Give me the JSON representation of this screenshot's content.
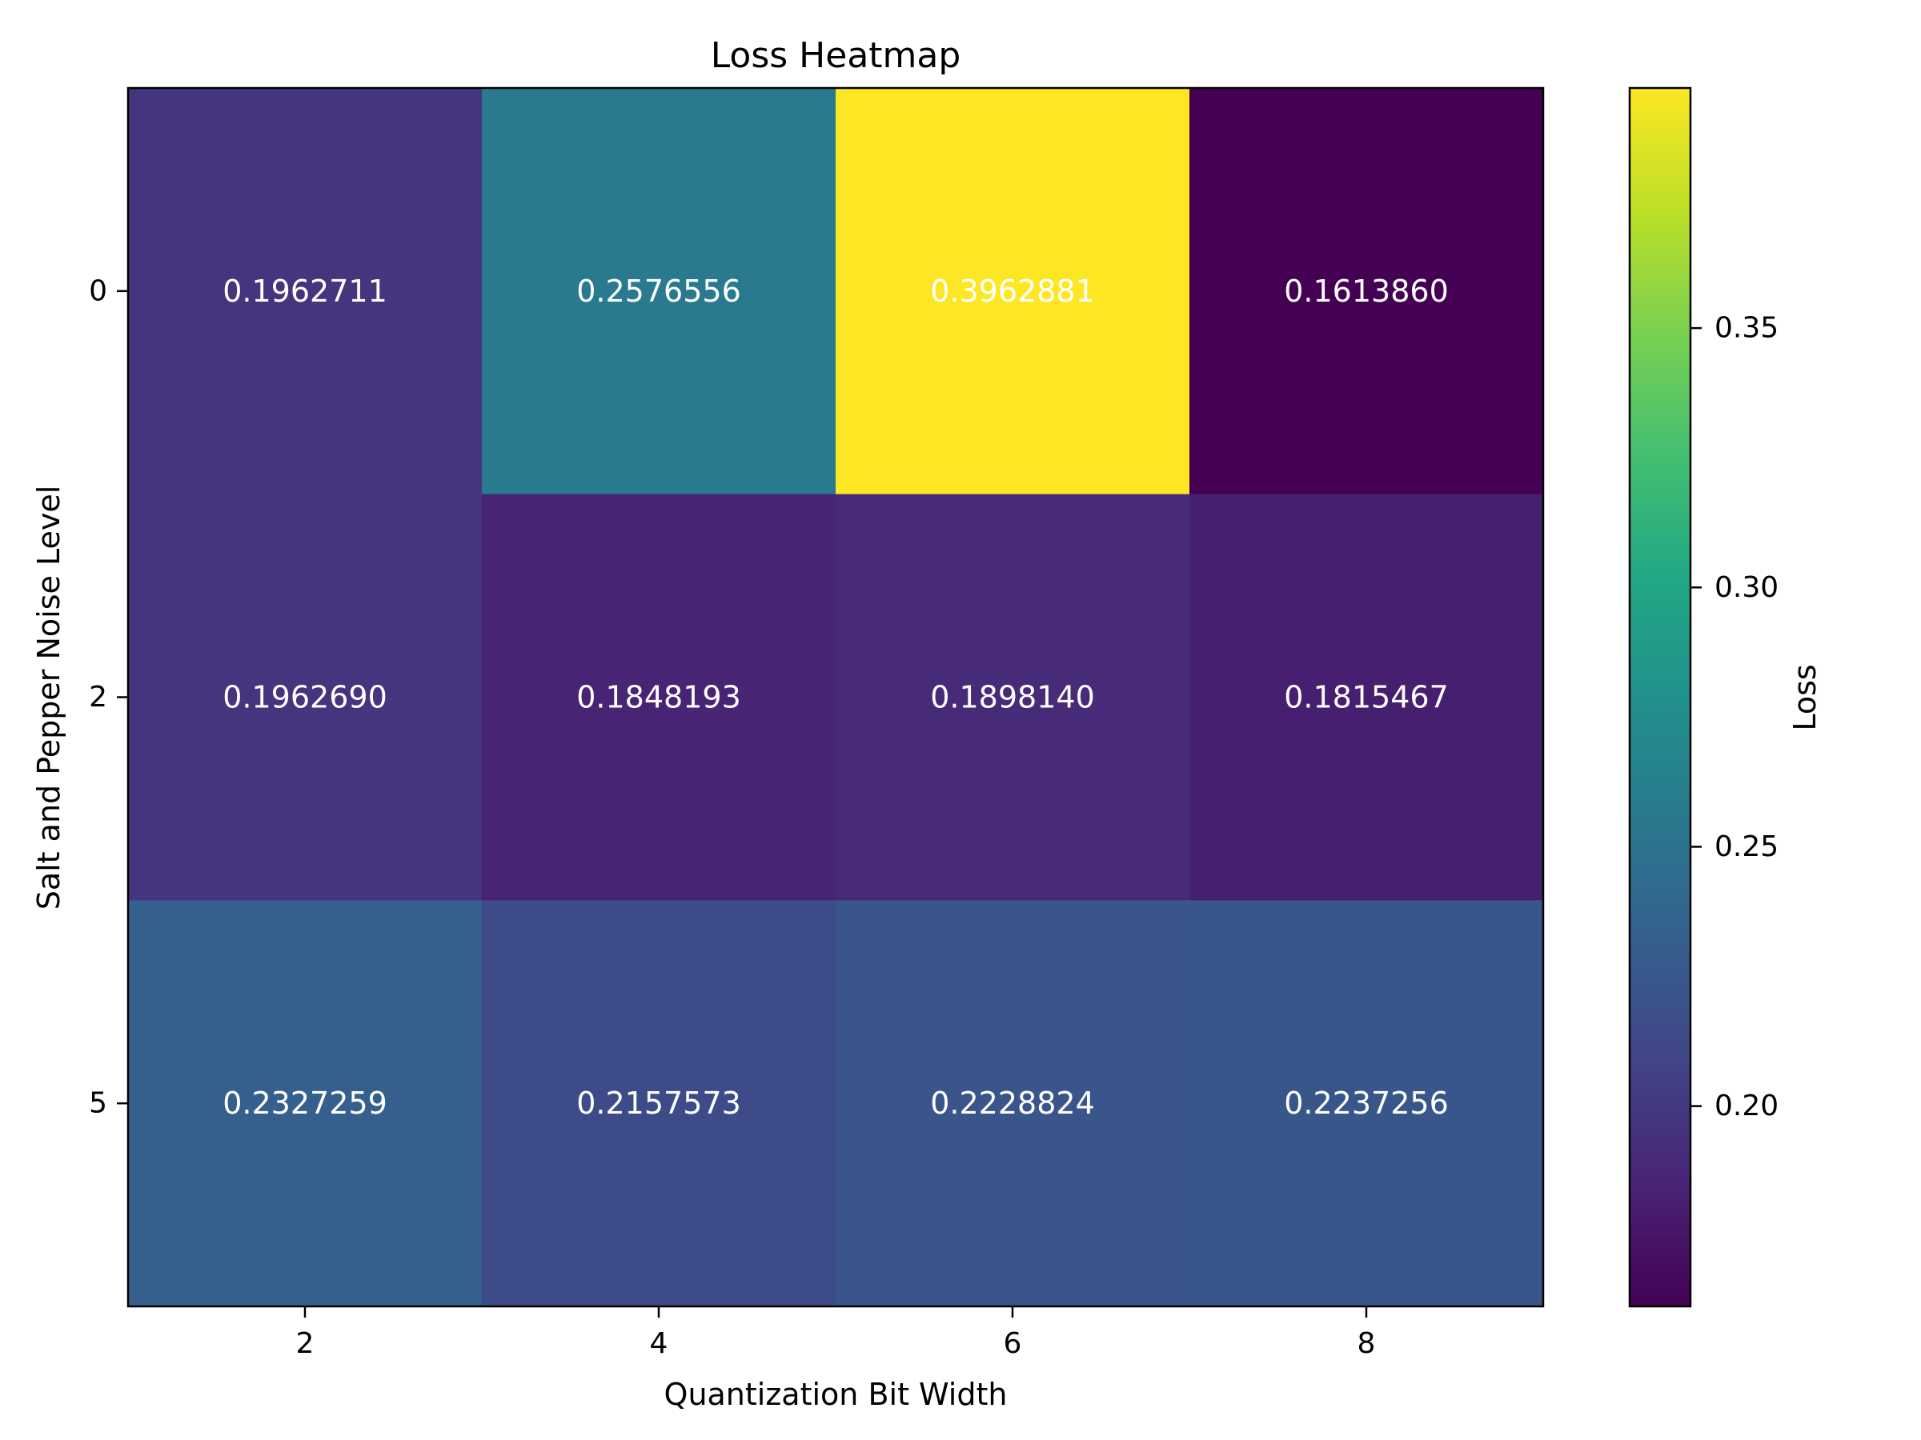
{
  "chart_data": {
    "type": "heatmap",
    "title": "Loss Heatmap",
    "xlabel": "Quantization Bit Width",
    "ylabel": "Salt and Pepper Noise Level",
    "x_categories": [
      "2",
      "4",
      "6",
      "8"
    ],
    "y_categories": [
      "0",
      "2",
      "5"
    ],
    "values": [
      [
        0.1962711,
        0.2576556,
        0.3962881,
        0.161386
      ],
      [
        0.196269,
        0.1848193,
        0.189814,
        0.1815467
      ],
      [
        0.2327259,
        0.2157573,
        0.2228824,
        0.2237256
      ]
    ],
    "value_labels": [
      [
        "0.1962711",
        "0.2576556",
        "0.3962881",
        "0.1613860"
      ],
      [
        "0.1962690",
        "0.1848193",
        "0.1898140",
        "0.1815467"
      ],
      [
        "0.2327259",
        "0.2157573",
        "0.2228824",
        "0.2237256"
      ]
    ],
    "colorbar": {
      "label": "Loss",
      "colormap": "viridis",
      "vmin": 0.161386,
      "vmax": 0.3962881,
      "ticks": [
        0.2,
        0.25,
        0.3,
        0.35
      ],
      "tick_labels": [
        "0.20",
        "0.25",
        "0.30",
        "0.35"
      ]
    },
    "grid": false,
    "legend": "colorbar-right"
  }
}
